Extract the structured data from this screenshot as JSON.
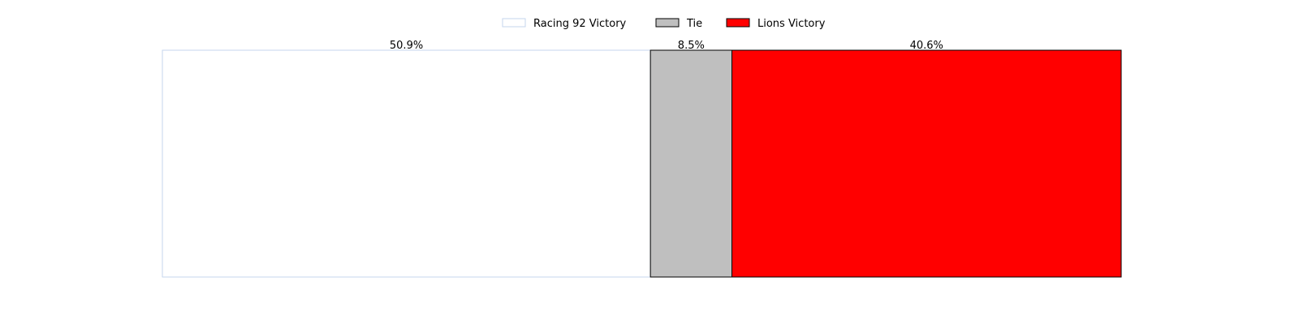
{
  "chart_data": {
    "type": "bar",
    "orientation": "horizontal",
    "stacked": true,
    "normalized": true,
    "title": "",
    "xlabel": "",
    "ylabel": "",
    "grid": false,
    "axes_visible": false,
    "legend_placement": "top-center",
    "xlim": [
      0,
      100
    ],
    "series": [
      {
        "name": "Racing 92 Victory",
        "values": [
          50.9
        ],
        "label": "50.9%",
        "color": "#ffffff",
        "edge_color": "#c6d6ee"
      },
      {
        "name": "Tie",
        "values": [
          8.5
        ],
        "label": "8.5%",
        "color": "#bfbfbf",
        "edge_color": "#000000"
      },
      {
        "name": "Lions Victory",
        "values": [
          40.6
        ],
        "label": "40.6%",
        "color": "#ff0000",
        "edge_color": "#000000"
      }
    ]
  }
}
